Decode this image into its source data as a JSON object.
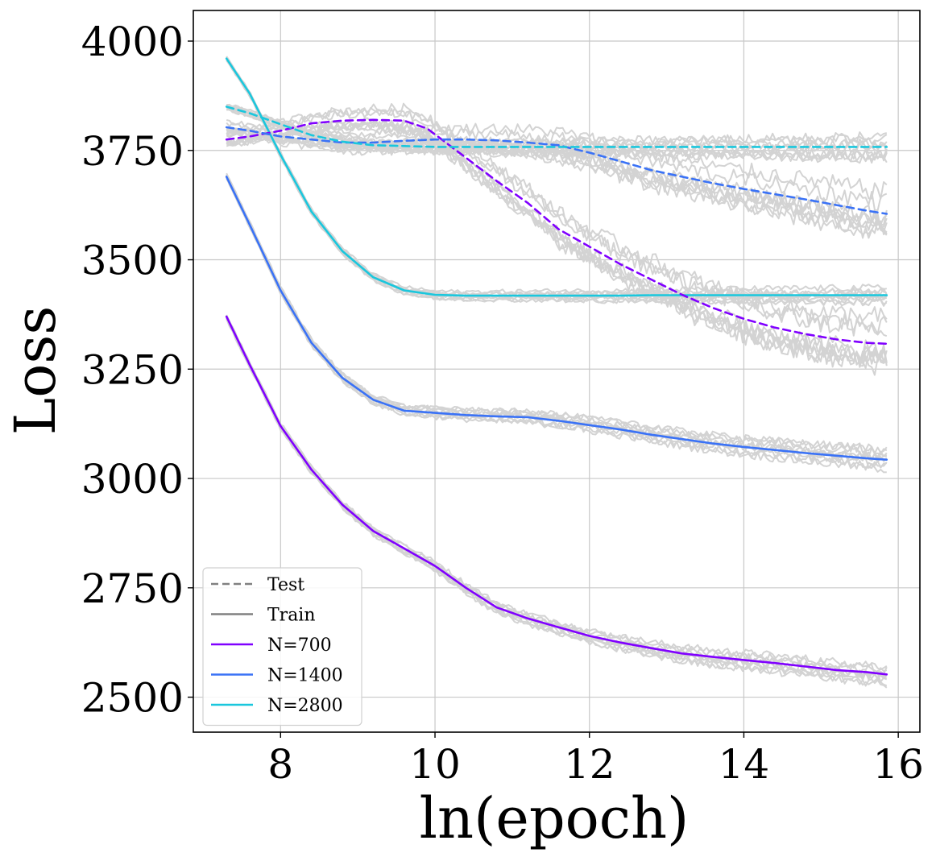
{
  "chart_data": {
    "type": "line",
    "title": "",
    "xlabel": "ln(epoch)",
    "ylabel": "Loss",
    "xlim": [
      6.87,
      16.28
    ],
    "ylim": [
      2420,
      4070
    ],
    "grid": true,
    "xticks": [
      8,
      10,
      12,
      14,
      16
    ],
    "xtick_labels": [
      "8",
      "10",
      "12",
      "14",
      "16"
    ],
    "yticks": [
      2500,
      2750,
      3000,
      3250,
      3500,
      3750,
      4000
    ],
    "ytick_labels": [
      "2500",
      "2750",
      "3000",
      "3250",
      "3500",
      "3750",
      "4000"
    ],
    "legend": {
      "location": "lower-left",
      "entries": [
        {
          "label": "Test",
          "color": "#808080",
          "style": "dashed"
        },
        {
          "label": "Train",
          "color": "#808080",
          "style": "solid"
        },
        {
          "label": "N=700",
          "color": "#8000ff",
          "style": "solid"
        },
        {
          "label": "N=1400",
          "color": "#3a72f6",
          "style": "solid"
        },
        {
          "label": "N=2800",
          "color": "#1ac7dd",
          "style": "solid"
        }
      ]
    },
    "series": [
      {
        "name": "N=700",
        "split": "Train",
        "color": "#8000ff",
        "dashed": false,
        "band": 25,
        "x": [
          7.3,
          7.6,
          8.0,
          8.4,
          8.8,
          9.2,
          9.6,
          10.0,
          10.4,
          10.8,
          11.2,
          11.6,
          12.0,
          12.4,
          12.8,
          13.2,
          13.6,
          14.0,
          14.4,
          14.8,
          15.2,
          15.6,
          15.85
        ],
        "y": [
          3370,
          3260,
          3120,
          3020,
          2940,
          2880,
          2840,
          2800,
          2750,
          2705,
          2680,
          2660,
          2640,
          2625,
          2612,
          2600,
          2592,
          2585,
          2578,
          2570,
          2562,
          2557,
          2552
        ]
      },
      {
        "name": "N=1400",
        "split": "Train",
        "color": "#3a72f6",
        "dashed": false,
        "band": 25,
        "x": [
          7.3,
          7.6,
          8.0,
          8.4,
          8.8,
          9.2,
          9.6,
          10.0,
          10.4,
          10.8,
          11.2,
          11.6,
          12.0,
          12.4,
          12.8,
          13.2,
          13.6,
          14.0,
          14.4,
          14.8,
          15.2,
          15.6,
          15.85
        ],
        "y": [
          3690,
          3580,
          3430,
          3310,
          3230,
          3180,
          3155,
          3150,
          3145,
          3142,
          3140,
          3132,
          3122,
          3112,
          3100,
          3090,
          3080,
          3072,
          3065,
          3058,
          3052,
          3046,
          3043
        ]
      },
      {
        "name": "N=2800",
        "split": "Train",
        "color": "#1ac7dd",
        "dashed": false,
        "band": 18,
        "x": [
          7.3,
          7.6,
          8.0,
          8.4,
          8.8,
          9.2,
          9.6,
          10.0,
          10.4,
          10.8,
          11.2,
          11.6,
          12.0,
          12.4,
          12.8,
          13.2,
          13.6,
          14.0,
          14.4,
          14.8,
          15.2,
          15.6,
          15.85
        ],
        "y": [
          3960,
          3880,
          3740,
          3610,
          3520,
          3460,
          3430,
          3420,
          3418,
          3418,
          3418,
          3418,
          3418,
          3418,
          3419,
          3419,
          3419,
          3419,
          3419,
          3419,
          3419,
          3419,
          3419
        ]
      },
      {
        "name": "N=700",
        "split": "Test",
        "color": "#8000ff",
        "dashed": true,
        "band": 60,
        "x": [
          7.3,
          7.6,
          8.0,
          8.4,
          8.8,
          9.2,
          9.6,
          9.9,
          10.2,
          10.5,
          10.8,
          11.2,
          11.6,
          12.0,
          12.4,
          12.8,
          13.2,
          13.6,
          14.0,
          14.4,
          14.8,
          15.2,
          15.6,
          15.85
        ],
        "y": [
          3775,
          3782,
          3795,
          3812,
          3818,
          3820,
          3818,
          3800,
          3760,
          3720,
          3680,
          3630,
          3570,
          3530,
          3490,
          3455,
          3420,
          3390,
          3365,
          3345,
          3330,
          3318,
          3310,
          3308
        ]
      },
      {
        "name": "N=1400",
        "split": "Test",
        "color": "#3a72f6",
        "dashed": true,
        "band": 50,
        "x": [
          7.3,
          7.6,
          8.0,
          8.4,
          8.8,
          9.2,
          9.6,
          10.0,
          10.4,
          10.8,
          11.2,
          11.6,
          12.0,
          12.4,
          12.8,
          13.2,
          13.6,
          14.0,
          14.4,
          14.8,
          15.2,
          15.6,
          15.85
        ],
        "y": [
          3803,
          3795,
          3782,
          3775,
          3768,
          3768,
          3772,
          3775,
          3775,
          3773,
          3768,
          3762,
          3745,
          3725,
          3705,
          3690,
          3675,
          3662,
          3650,
          3638,
          3625,
          3612,
          3605
        ]
      },
      {
        "name": "N=2800",
        "split": "Test",
        "color": "#1ac7dd",
        "dashed": true,
        "band": 30,
        "x": [
          7.3,
          7.6,
          8.0,
          8.4,
          8.8,
          9.2,
          9.6,
          10.0,
          10.4,
          10.8,
          11.2,
          11.6,
          12.0,
          12.4,
          12.8,
          13.2,
          13.6,
          14.0,
          14.4,
          14.8,
          15.2,
          15.6,
          15.85
        ],
        "y": [
          3850,
          3835,
          3810,
          3785,
          3770,
          3762,
          3760,
          3758,
          3758,
          3758,
          3758,
          3758,
          3758,
          3758,
          3758,
          3758,
          3758,
          3758,
          3758,
          3758,
          3758,
          3758,
          3758
        ]
      }
    ]
  }
}
